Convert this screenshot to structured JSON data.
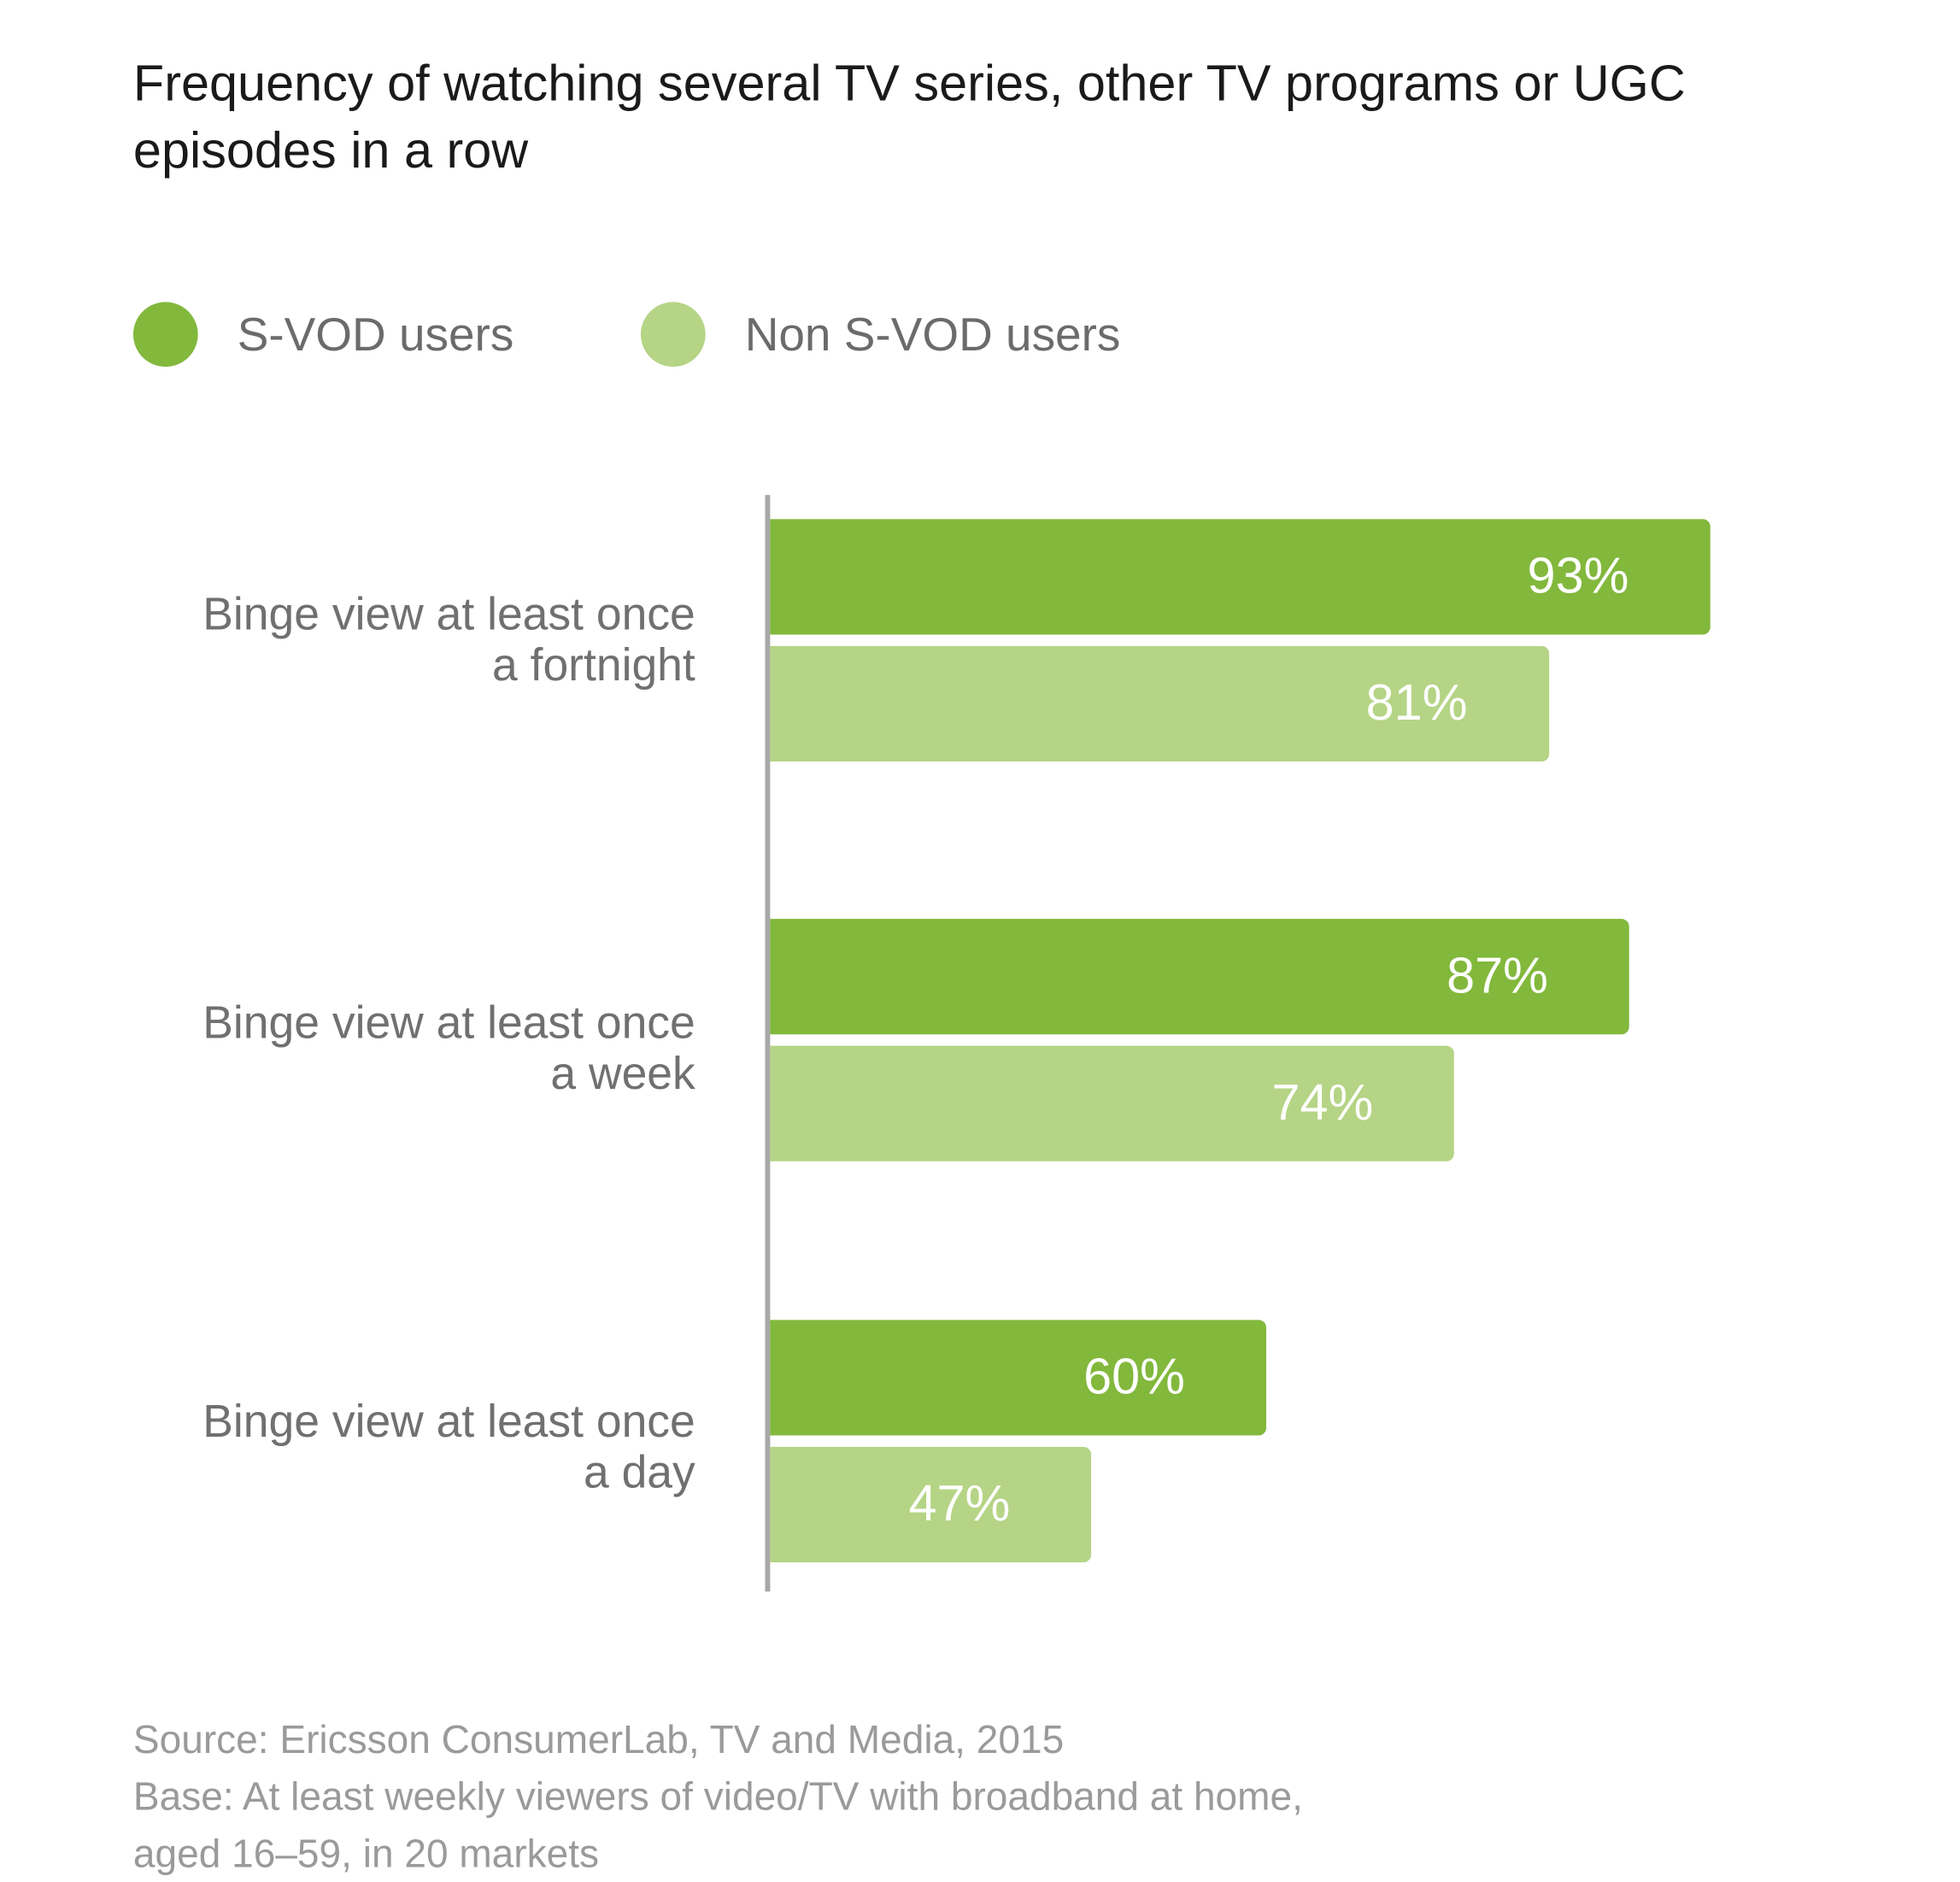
{
  "chart_data": {
    "type": "bar",
    "orientation": "horizontal",
    "title": "Frequency of watching several TV series, other TV programs or UGC episodes in a row",
    "categories": [
      "Binge view at least once a fortnight",
      "Binge view at least once a week",
      "Binge view at least once a day"
    ],
    "series": [
      {
        "name": "S-VOD users",
        "color": "#82b83c",
        "values": [
          93,
          87,
          60
        ],
        "labels": [
          "93%",
          "87%",
          "60%"
        ]
      },
      {
        "name": "Non S-VOD users",
        "color": "#b5d485",
        "values": [
          81,
          74,
          47
        ],
        "labels": [
          "81%",
          "74%",
          "47%"
        ]
      }
    ],
    "unit": "%",
    "legend": "top-left",
    "grid": false
  },
  "categories_lines": [
    [
      "Binge view at least once",
      "a fortnight"
    ],
    [
      "Binge view at least once",
      "a week"
    ],
    [
      "Binge view at least once",
      "a day"
    ]
  ],
  "source": {
    "line1": "Source: Ericsson ConsumerLab, TV and Media, 2015",
    "line2": "Base: At least weekly viewers of video/TV with broadband at home,",
    "line3": "aged 16–59, in 20 markets"
  }
}
